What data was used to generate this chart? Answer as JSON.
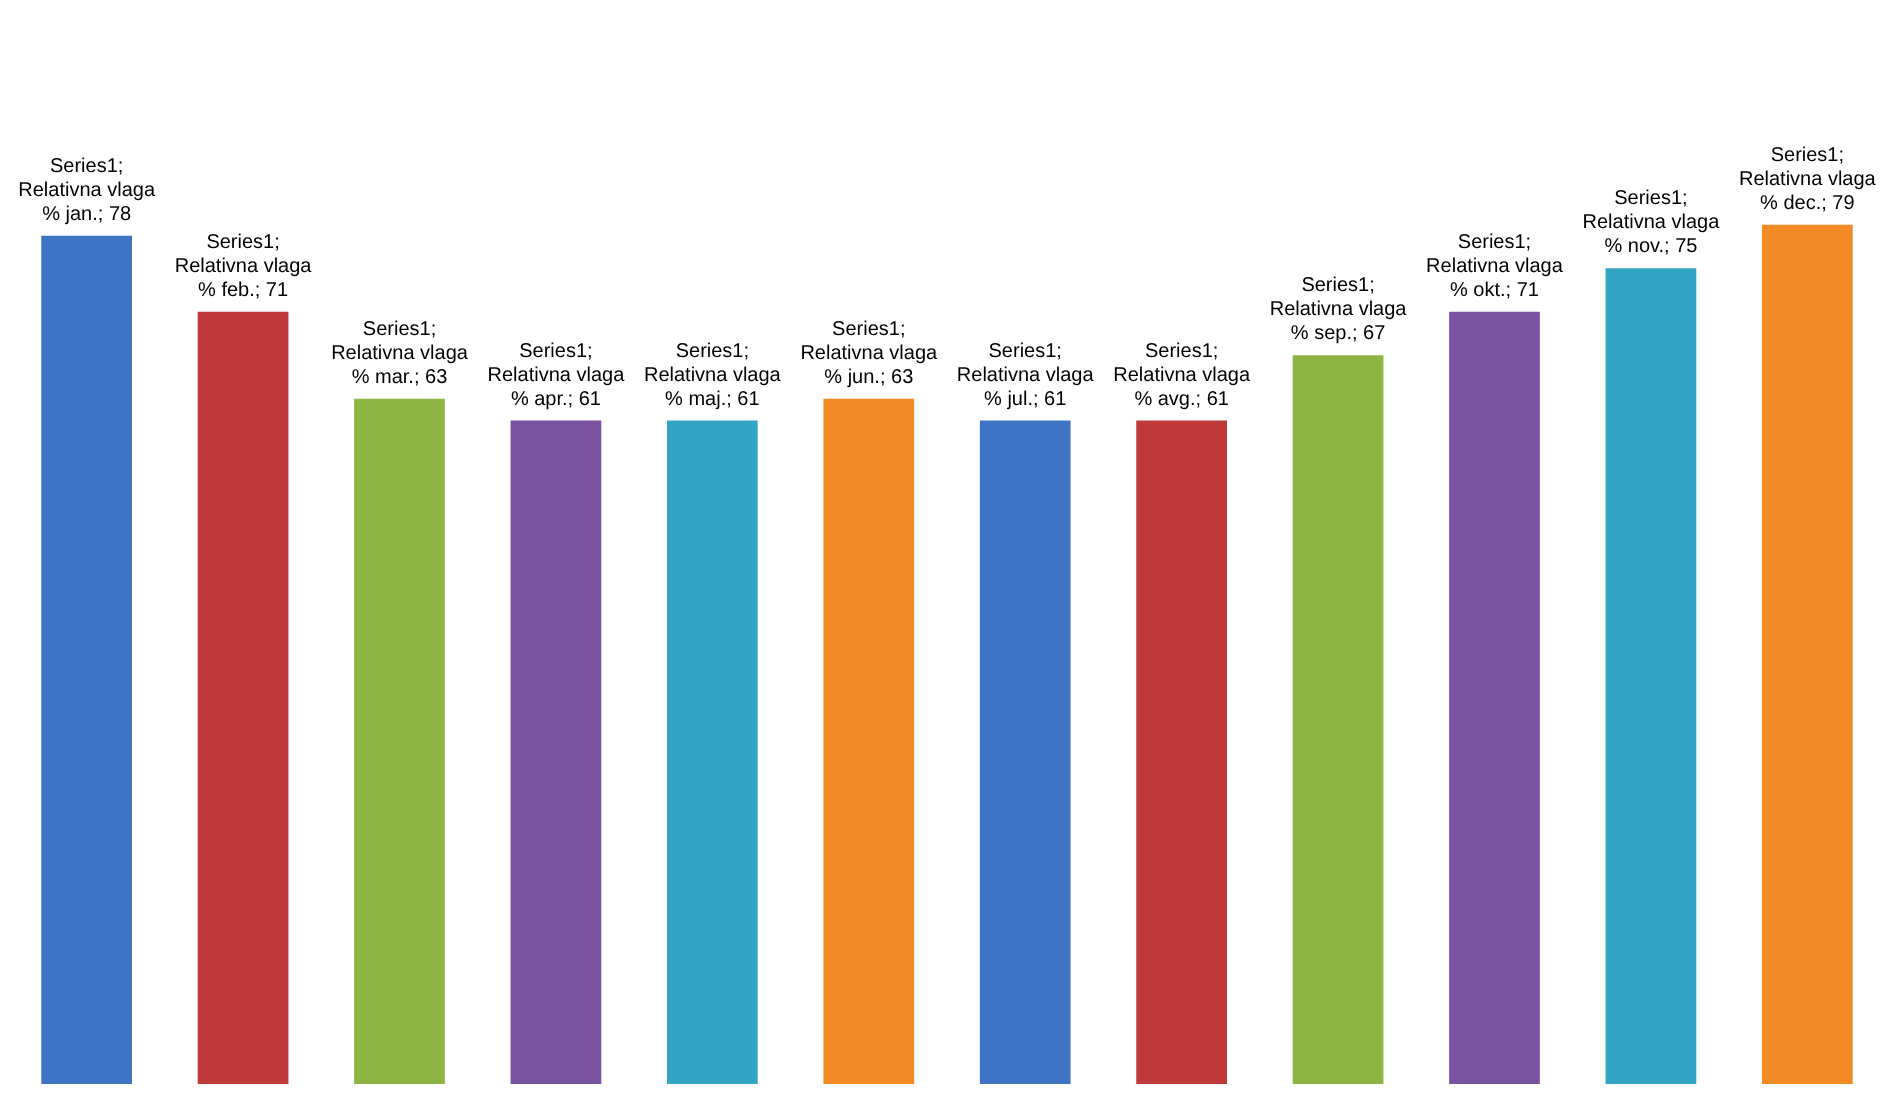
{
  "chart_data": {
    "type": "bar",
    "categories": [
      null,
      null,
      null,
      null,
      null,
      null,
      null,
      null,
      null,
      null,
      null,
      null
    ],
    "values": [
      78,
      71,
      63,
      61,
      61,
      63,
      61,
      61,
      67,
      71,
      75,
      79
    ],
    "colors": [
      "#3f74c4",
      "#c0393a",
      "#8db543",
      "#7953a0",
      "#33a5c4",
      "#f28b26",
      "#3f74c4",
      "#c0393a",
      "#8db543",
      "#7953a0",
      "#33a5c4",
      "#f28b26"
    ],
    "value_labels": [
      "Series1; Relativna vlaga % jan.; 78",
      "Series1; Relativna vlaga % feb.; 71",
      "Series1; Relativna vlaga % mar.; 63",
      "Series1; Relativna vlaga % apr.; 61",
      "Series1; Relativna vlaga % maj.; 61",
      "Series1; Relativna vlaga % jun.; 63",
      "Series1; Relativna vlaga % jul.; 61",
      "Series1; Relativna vlaga % avg.; 61",
      "Series1; Relativna vlaga % sep.; 67",
      "Series1; Relativna vlaga % okt.; 71",
      "Series1; Relativna vlaga % nov.; 75",
      "Series1; Relativna vlaga % dec.; 79"
    ]
  }
}
